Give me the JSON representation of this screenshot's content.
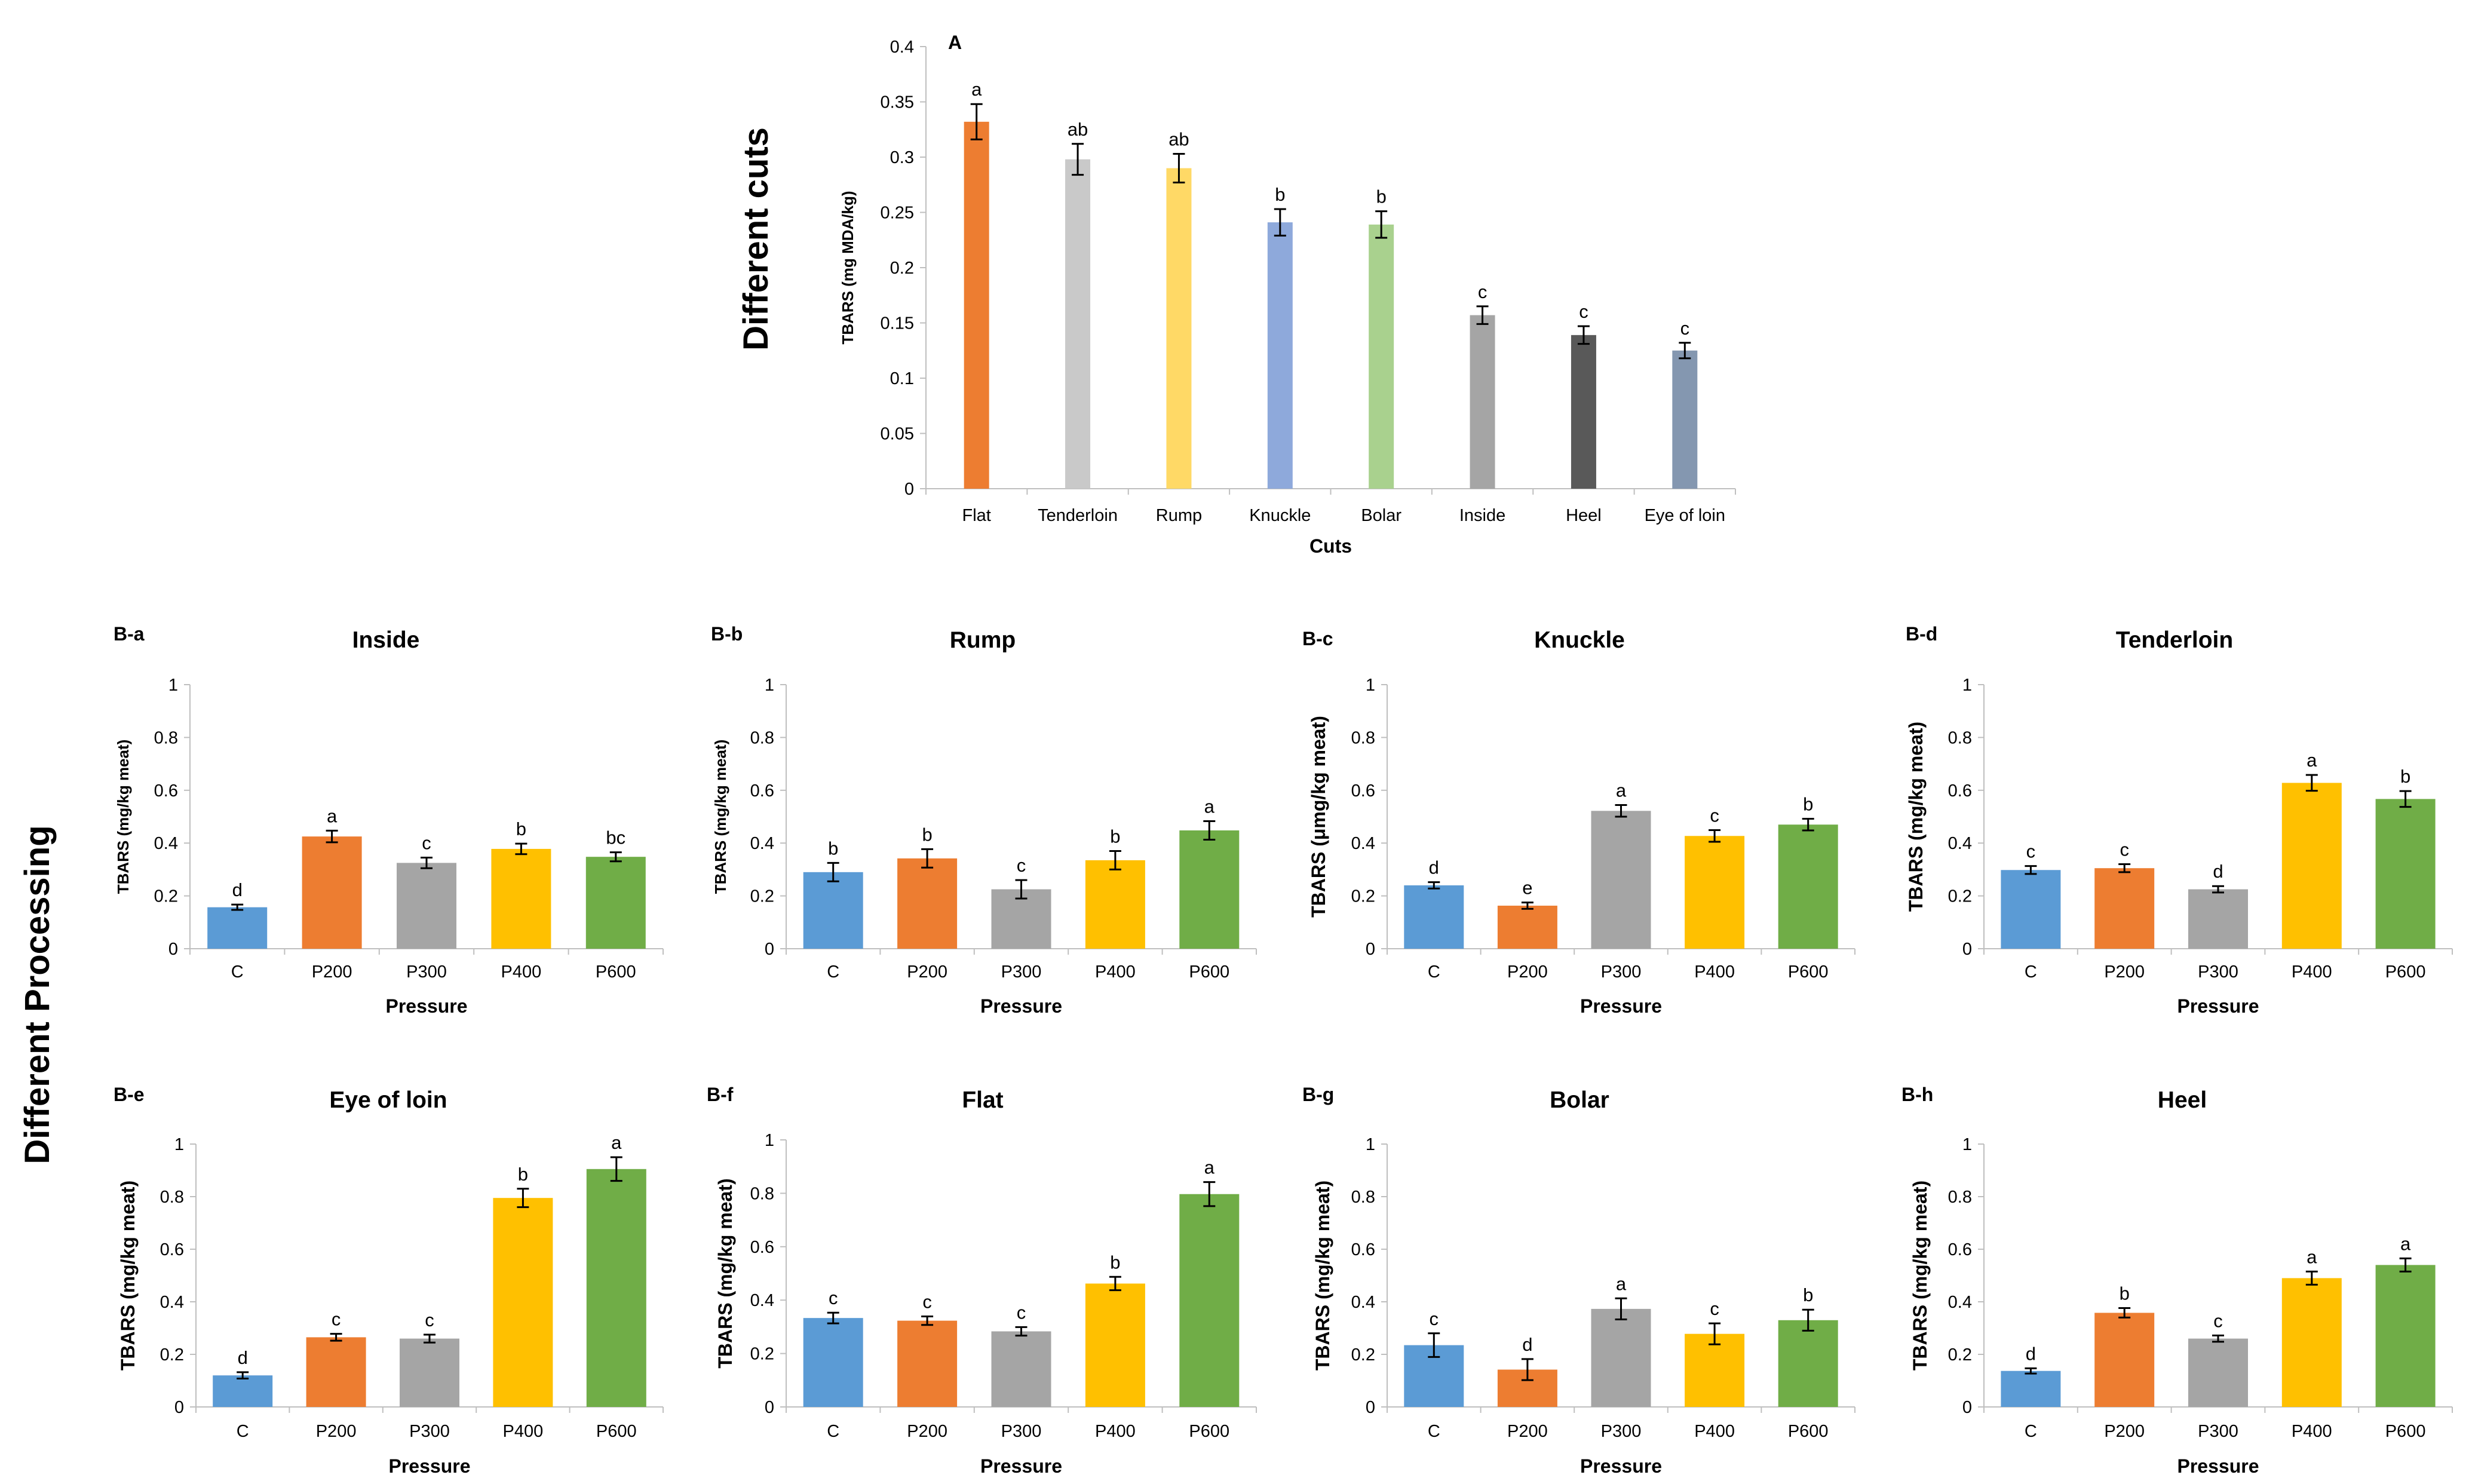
{
  "side_labels": {
    "top": "Different cuts",
    "bottom": "Different Processing"
  },
  "chart_data": [
    {
      "id": "A",
      "panel_label": "A",
      "type": "bar",
      "title": "",
      "xlabel": "Cuts",
      "ylabel": "TBARS (mg MDA/kg)",
      "ylim": [
        0,
        0.4
      ],
      "yticks": [
        "0",
        "0.05",
        "0.1",
        "0.15",
        "0.2",
        "0.25",
        "0.3",
        "0.35",
        "0.4"
      ],
      "categories": [
        "Flat",
        "Tenderloin",
        "Rump",
        "Knuckle",
        "Bolar",
        "Inside",
        "Heel",
        "Eye of loin"
      ],
      "values": [
        0.332,
        0.298,
        0.29,
        0.241,
        0.239,
        0.157,
        0.139,
        0.125
      ],
      "errors": [
        0.016,
        0.014,
        0.013,
        0.012,
        0.012,
        0.008,
        0.008,
        0.007
      ],
      "labels": [
        "a",
        "ab",
        "ab",
        "b",
        "b",
        "c",
        "c",
        "c"
      ],
      "colors": [
        "#ED7D31",
        "#C9C9C9",
        "#FFD966",
        "#8EA9DB",
        "#A9D18E",
        "#A5A5A5",
        "#595959",
        "#8497B0"
      ]
    },
    {
      "id": "B-a",
      "panel_label": "B-a",
      "type": "bar",
      "title": "Inside",
      "xlabel": "Pressure",
      "ylabel": "TBARS (mg/kg meat)",
      "ylim": [
        0,
        1
      ],
      "yticks": [
        "0",
        "0.2",
        "0.4",
        "0.6",
        "0.8",
        "1"
      ],
      "categories": [
        "C",
        "P200",
        "P300",
        "P400",
        "P600"
      ],
      "values": [
        0.157,
        0.425,
        0.325,
        0.378,
        0.348
      ],
      "errors": [
        0.01,
        0.022,
        0.02,
        0.02,
        0.017
      ],
      "labels": [
        "d",
        "a",
        "c",
        "b",
        "bc"
      ],
      "colors": [
        "#5B9BD5",
        "#ED7D31",
        "#A5A5A5",
        "#FFC000",
        "#70AD47"
      ]
    },
    {
      "id": "B-b",
      "panel_label": "B-b",
      "type": "bar",
      "title": "Rump",
      "xlabel": "Pressure",
      "ylabel": "TBARS (mg/kg meat)",
      "ylim": [
        0,
        1
      ],
      "yticks": [
        "0",
        "0.2",
        "0.4",
        "0.6",
        "0.8",
        "1"
      ],
      "categories": [
        "C",
        "P200",
        "P300",
        "P400",
        "P600"
      ],
      "values": [
        0.29,
        0.342,
        0.225,
        0.335,
        0.448
      ],
      "errors": [
        0.035,
        0.035,
        0.035,
        0.035,
        0.035
      ],
      "labels": [
        "b",
        "b",
        "c",
        "b",
        "a"
      ],
      "colors": [
        "#5B9BD5",
        "#ED7D31",
        "#A5A5A5",
        "#FFC000",
        "#70AD47"
      ]
    },
    {
      "id": "B-c",
      "panel_label": "B-c",
      "type": "bar",
      "title": "Knuckle",
      "xlabel": "Pressure",
      "ylabel": "TBARS (μmg/kg meat)",
      "ylim": [
        0,
        1
      ],
      "yticks": [
        "0",
        "0.2",
        "0.4",
        "0.6",
        "0.8",
        "1"
      ],
      "categories": [
        "C",
        "P200",
        "P300",
        "P400",
        "P600"
      ],
      "values": [
        0.24,
        0.163,
        0.522,
        0.427,
        0.47
      ],
      "errors": [
        0.012,
        0.012,
        0.022,
        0.022,
        0.022
      ],
      "labels": [
        "d",
        "e",
        "a",
        "c",
        "b"
      ],
      "colors": [
        "#5B9BD5",
        "#ED7D31",
        "#A5A5A5",
        "#FFC000",
        "#70AD47"
      ]
    },
    {
      "id": "B-d",
      "panel_label": "B-d",
      "type": "bar",
      "title": "Tenderloin",
      "xlabel": "Pressure",
      "ylabel": "TBARS (mg/kg meat)",
      "ylim": [
        0,
        1
      ],
      "yticks": [
        "0",
        "0.2",
        "0.4",
        "0.6",
        "0.8",
        "1"
      ],
      "categories": [
        "C",
        "P200",
        "P300",
        "P400",
        "P600"
      ],
      "values": [
        0.298,
        0.305,
        0.225,
        0.628,
        0.567
      ],
      "errors": [
        0.015,
        0.015,
        0.012,
        0.03,
        0.03
      ],
      "labels": [
        "c",
        "c",
        "d",
        "a",
        "b"
      ],
      "colors": [
        "#5B9BD5",
        "#ED7D31",
        "#A5A5A5",
        "#FFC000",
        "#70AD47"
      ]
    },
    {
      "id": "B-e",
      "panel_label": "B-e",
      "type": "bar",
      "title": "Eye of loin",
      "xlabel": "Pressure",
      "ylabel": "TBARS (mg/kg meat)",
      "ylim": [
        0,
        1
      ],
      "yticks": [
        "0",
        "0.2",
        "0.4",
        "0.6",
        "0.8",
        "1"
      ],
      "categories": [
        "C",
        "P200",
        "P300",
        "P400",
        "P600"
      ],
      "values": [
        0.12,
        0.265,
        0.26,
        0.795,
        0.905
      ],
      "errors": [
        0.012,
        0.013,
        0.015,
        0.035,
        0.045
      ],
      "labels": [
        "d",
        "c",
        "c",
        "b",
        "a"
      ],
      "colors": [
        "#5B9BD5",
        "#ED7D31",
        "#A5A5A5",
        "#FFC000",
        "#70AD47"
      ]
    },
    {
      "id": "B-f",
      "panel_label": "B-f",
      "type": "bar",
      "title": "Flat",
      "xlabel": "Pressure",
      "ylabel": "TBARS (mg/kg meat)",
      "ylim": [
        0,
        1
      ],
      "yticks": [
        "0",
        "0.2",
        "0.4",
        "0.6",
        "0.8",
        "1"
      ],
      "categories": [
        "C",
        "P200",
        "P300",
        "P400",
        "P600"
      ],
      "values": [
        0.333,
        0.323,
        0.283,
        0.462,
        0.797
      ],
      "errors": [
        0.02,
        0.016,
        0.016,
        0.025,
        0.045
      ],
      "labels": [
        "c",
        "c",
        "c",
        "b",
        "a"
      ],
      "colors": [
        "#5B9BD5",
        "#ED7D31",
        "#A5A5A5",
        "#FFC000",
        "#70AD47"
      ]
    },
    {
      "id": "B-g",
      "panel_label": "B-g",
      "type": "bar",
      "title": "Bolar",
      "xlabel": "Pressure",
      "ylabel": "TBARS (mg/kg meat)",
      "ylim": [
        0,
        1
      ],
      "yticks": [
        "0",
        "0.2",
        "0.4",
        "0.6",
        "0.8",
        "1"
      ],
      "categories": [
        "C",
        "P200",
        "P300",
        "P400",
        "P600"
      ],
      "values": [
        0.235,
        0.142,
        0.373,
        0.278,
        0.33
      ],
      "errors": [
        0.045,
        0.04,
        0.04,
        0.04,
        0.04
      ],
      "labels": [
        "c",
        "d",
        "a",
        "c",
        "b"
      ],
      "colors": [
        "#5B9BD5",
        "#ED7D31",
        "#A5A5A5",
        "#FFC000",
        "#70AD47"
      ]
    },
    {
      "id": "B-h",
      "panel_label": "B-h",
      "type": "bar",
      "title": "Heel",
      "xlabel": "Pressure",
      "ylabel": "TBARS (mg/kg meat)",
      "ylim": [
        0,
        1
      ],
      "yticks": [
        "0",
        "0.2",
        "0.4",
        "0.6",
        "0.8",
        "1"
      ],
      "categories": [
        "C",
        "P200",
        "P300",
        "P400",
        "P600"
      ],
      "values": [
        0.137,
        0.358,
        0.26,
        0.49,
        0.54
      ],
      "errors": [
        0.01,
        0.018,
        0.012,
        0.025,
        0.025
      ],
      "labels": [
        "d",
        "b",
        "c",
        "a",
        "a"
      ],
      "colors": [
        "#5B9BD5",
        "#ED7D31",
        "#A5A5A5",
        "#FFC000",
        "#70AD47"
      ]
    }
  ]
}
